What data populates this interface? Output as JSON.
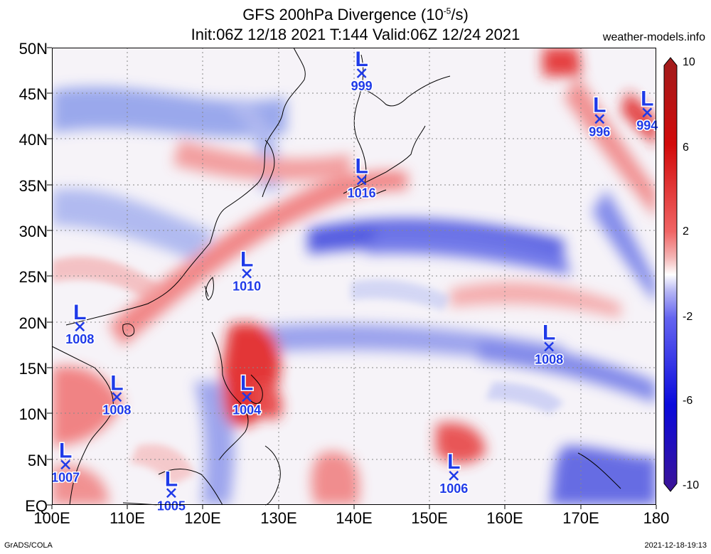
{
  "title": {
    "line1_prefix": "GFS 200hPa Divergence (10",
    "line1_sup": "-5",
    "line1_suffix": "/s)",
    "line2": "Init:06Z 12/18 2021 T:144 Valid:06Z 12/24 2021",
    "site": "weather-models.info"
  },
  "map": {
    "lon_range": [
      100,
      180
    ],
    "lat_range": [
      0,
      50
    ],
    "lat_labels": [
      "50N",
      "45N",
      "40N",
      "35N",
      "30N",
      "25N",
      "20N",
      "15N",
      "10N",
      "5N",
      "EQ"
    ],
    "lon_labels": [
      "100E",
      "110E",
      "120E",
      "130E",
      "140E",
      "150E",
      "160E",
      "170E",
      "180"
    ],
    "grid": true
  },
  "colorbar": {
    "labels": [
      "10",
      "6",
      "2",
      "-2",
      "-6",
      "-10"
    ],
    "colors": [
      "#a01c1c",
      "#d20a0a",
      "#f06464",
      "#f4b4b4",
      "#ffffff",
      "#b4b4f4",
      "#6464f0",
      "#0a0adc",
      "#3c1496"
    ]
  },
  "lows": [
    {
      "symbol": "L",
      "pressure": "999",
      "lon": 141,
      "lat": 47.2
    },
    {
      "symbol": "L",
      "pressure": "996",
      "lon": 172.5,
      "lat": 42.2
    },
    {
      "symbol": "L",
      "pressure": "994",
      "lon": 178.8,
      "lat": 42.9
    },
    {
      "symbol": "L",
      "pressure": "1016",
      "lon": 141,
      "lat": 35.5
    },
    {
      "symbol": "L",
      "pressure": "1010",
      "lon": 125.8,
      "lat": 25.3
    },
    {
      "symbol": "L",
      "pressure": "1008",
      "lon": 103.7,
      "lat": 19.5
    },
    {
      "symbol": "L",
      "pressure": "1008",
      "lon": 165.8,
      "lat": 17.3
    },
    {
      "symbol": "L",
      "pressure": "1008",
      "lon": 108.6,
      "lat": 11.8
    },
    {
      "symbol": "L",
      "pressure": "1004",
      "lon": 125.8,
      "lat": 11.8
    },
    {
      "symbol": "L",
      "pressure": "1007",
      "lon": 101.8,
      "lat": 4.4
    },
    {
      "symbol": "L",
      "pressure": "1006",
      "lon": 153.2,
      "lat": 3.2
    },
    {
      "symbol": "L",
      "pressure": "1005",
      "lon": 115.8,
      "lat": 1.3
    }
  ],
  "footer": {
    "left": "GrADS/COLA",
    "right": "2021-12-18-19:13"
  }
}
